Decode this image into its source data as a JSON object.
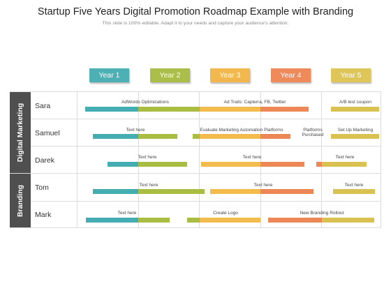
{
  "title": "Startup Five Years Digital Promotion Roadmap Example with Branding",
  "subtitle": "This slide is 100% editable. Adapt it to your needs and capture your audience's attention.",
  "colors": {
    "teal": "#44adb1",
    "olive": "#a9bd43",
    "yellow": "#f2bb4b",
    "orange": "#ee8756",
    "gold": "#d9c251",
    "dark": "#4f4f4f"
  },
  "years": [
    {
      "label": "Year 1",
      "color": "#4cb0b4"
    },
    {
      "label": "Year 2",
      "color": "#abbe49"
    },
    {
      "label": "Year 3",
      "color": "#f2b84d"
    },
    {
      "label": "Year 4",
      "color": "#ef8a5a"
    },
    {
      "label": "Year 5",
      "color": "#dec658"
    }
  ],
  "categories": [
    {
      "label": "Digital Marketing"
    },
    {
      "label": "Branding"
    }
  ],
  "people": [
    {
      "name": "Sara"
    },
    {
      "name": "Samuel"
    },
    {
      "name": "Darek"
    },
    {
      "name": "Tom"
    },
    {
      "name": "Mark"
    }
  ],
  "task_labels": {
    "sara_1": "AdWords Optimizations",
    "sara_2": "Ad Trails: Capterra, FB, Twitter",
    "sara_3": "A/B test coupon",
    "samuel_1": "Text here",
    "samuel_2": "Evaluate Marketing Automation Platforms",
    "samuel_3": "Platforms Purchased",
    "samuel_4": "Set Up Marketing",
    "darek_1": "Text here",
    "darek_2": "Text here",
    "darek_3": "Text here",
    "tom_1": "Text here",
    "tom_2": "Text here",
    "tom_3": "Text here",
    "mark_1": "Text here",
    "mark_2": "Create Logo",
    "mark_3": "New Branding Rollout"
  }
}
